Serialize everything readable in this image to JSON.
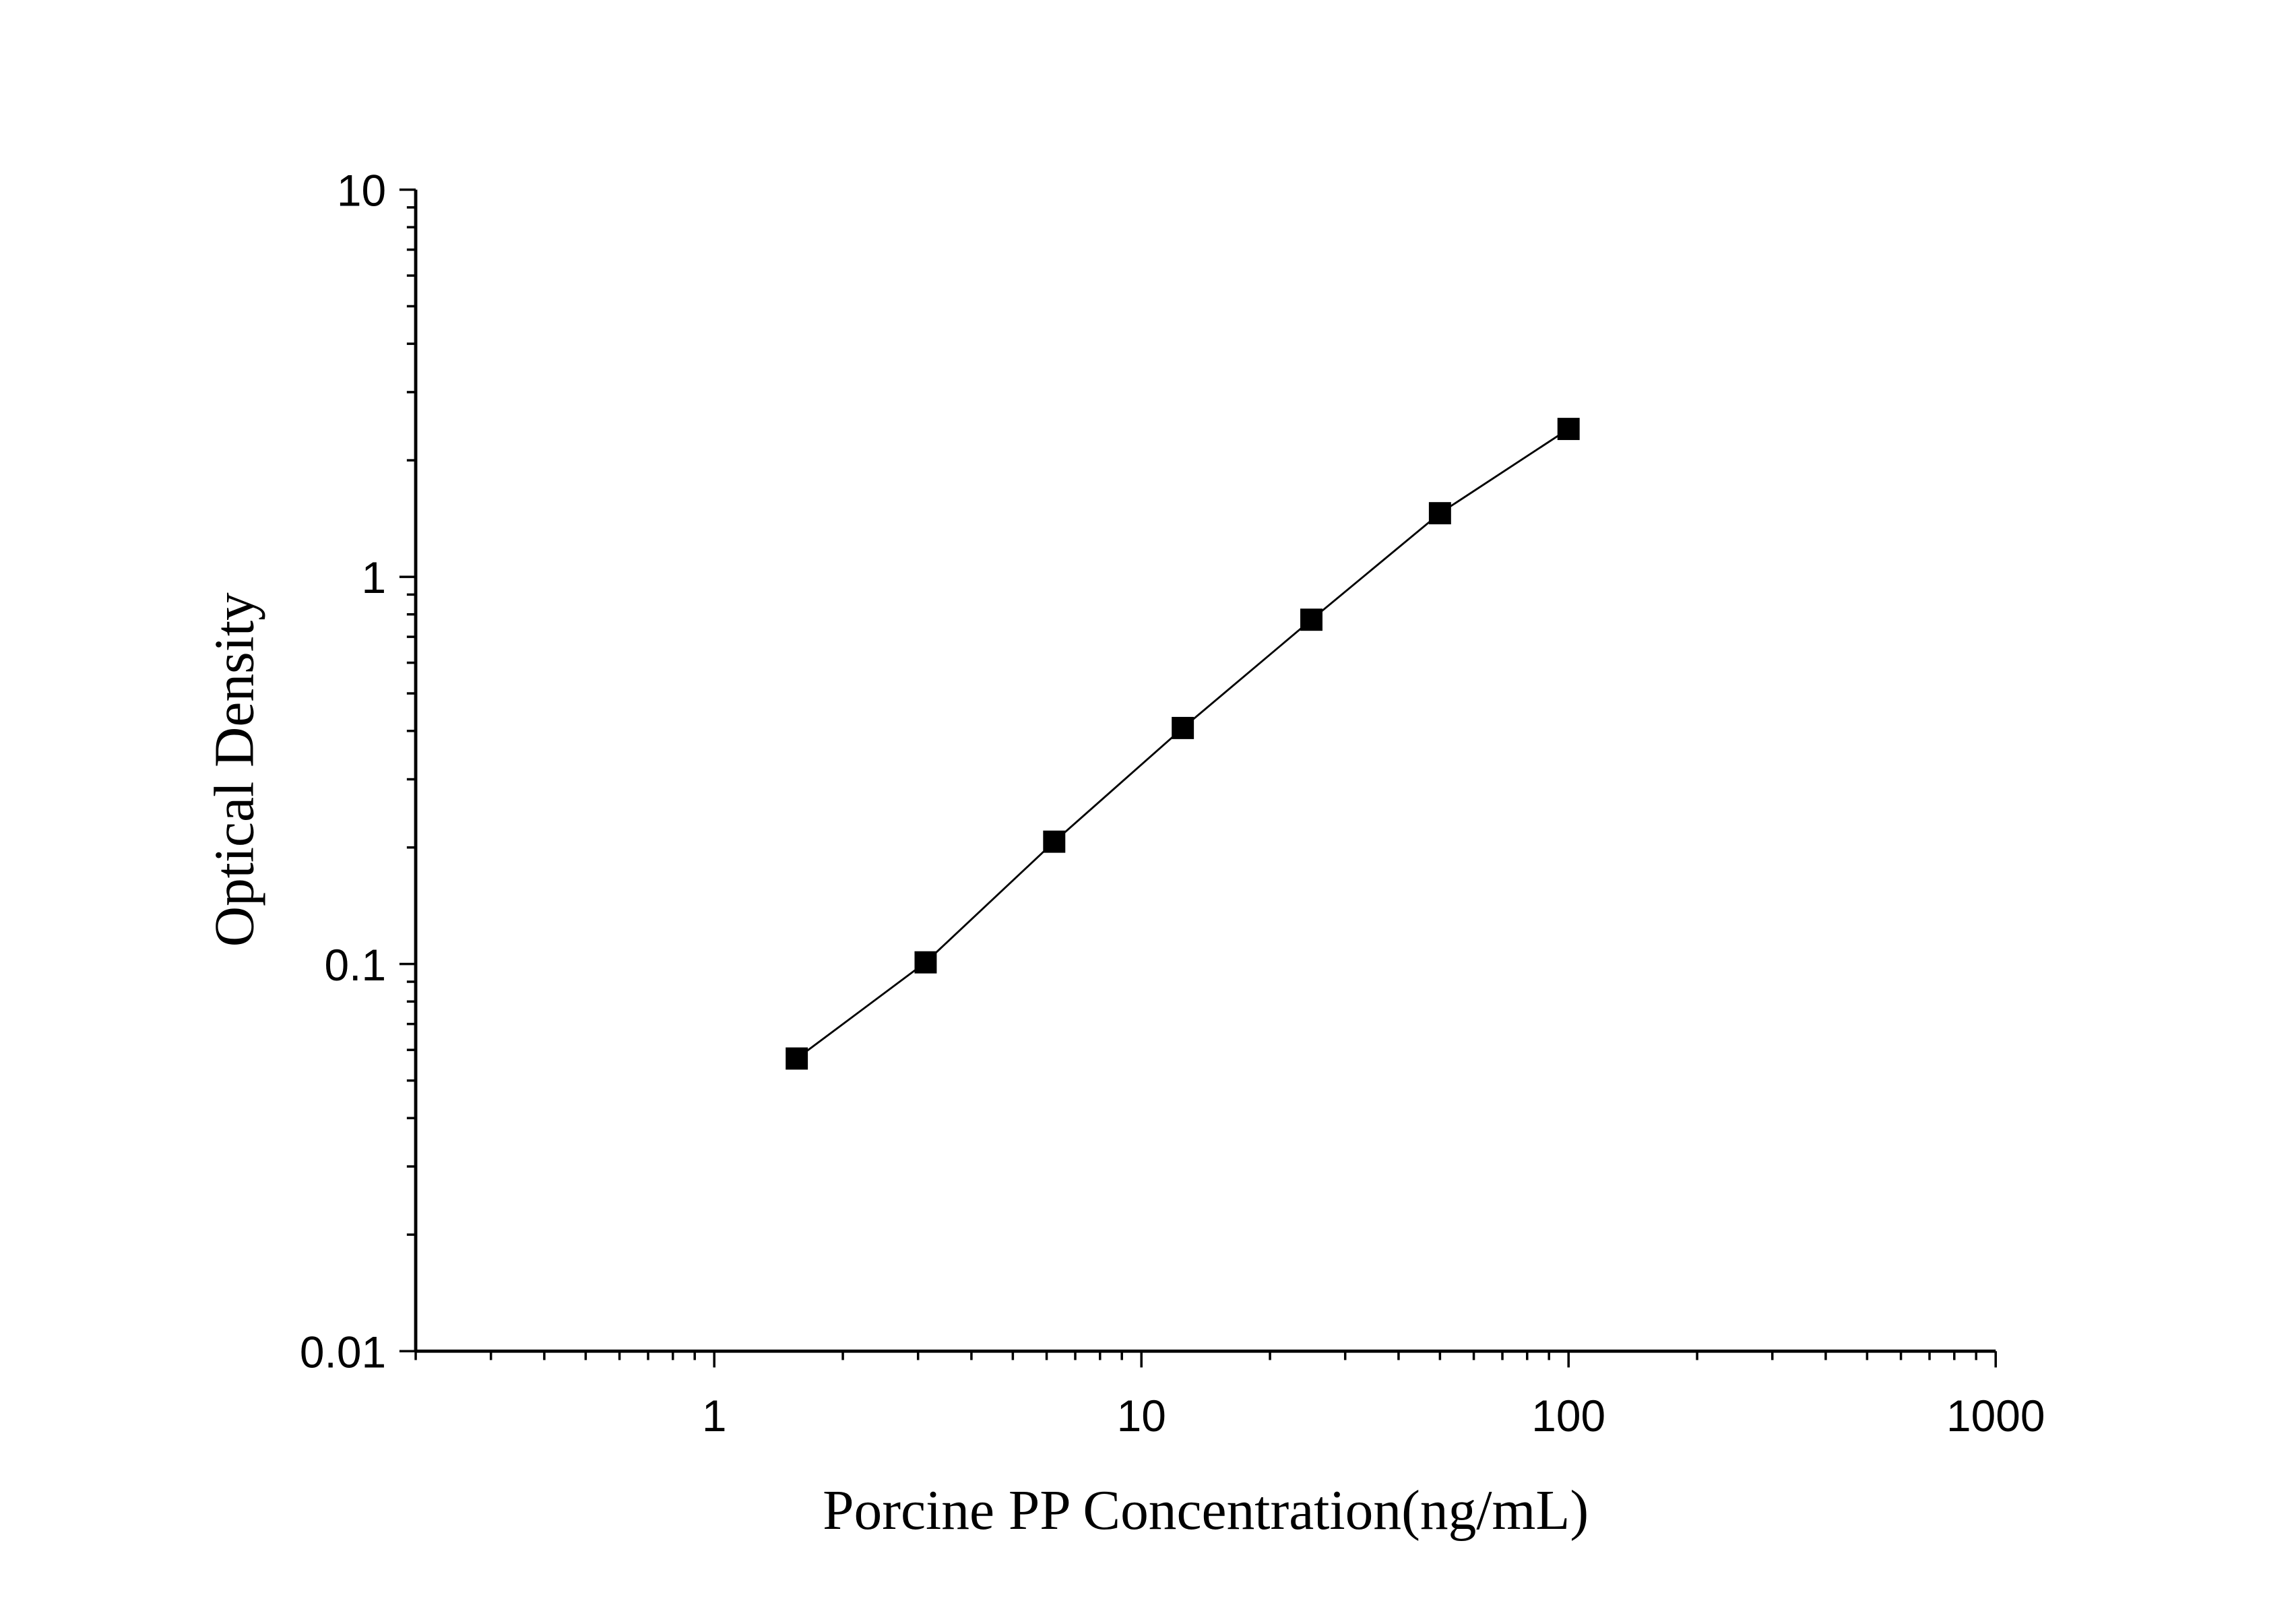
{
  "chart_data": {
    "type": "line",
    "title": "",
    "xlabel": "Porcine PP Concentration(ng/mL)",
    "ylabel": "Optical Density",
    "xscale": "log",
    "yscale": "log",
    "xlim": [
      0.2,
      1000
    ],
    "ylim": [
      0.01,
      10
    ],
    "x_ticks": [
      1,
      10,
      100,
      1000
    ],
    "x_tick_labels": [
      "1",
      "10",
      "100",
      "1000"
    ],
    "y_ticks": [
      0.01,
      0.1,
      1,
      10
    ],
    "y_tick_labels": [
      "0.01",
      "0.1",
      "1",
      "10"
    ],
    "grid": false,
    "marker": "square",
    "series_color": "#000000",
    "series": [
      {
        "x": [
          1.56,
          3.125,
          6.25,
          12.5,
          25,
          50,
          100
        ],
        "y": [
          0.057,
          0.101,
          0.207,
          0.407,
          0.775,
          1.46,
          2.41
        ]
      }
    ]
  }
}
